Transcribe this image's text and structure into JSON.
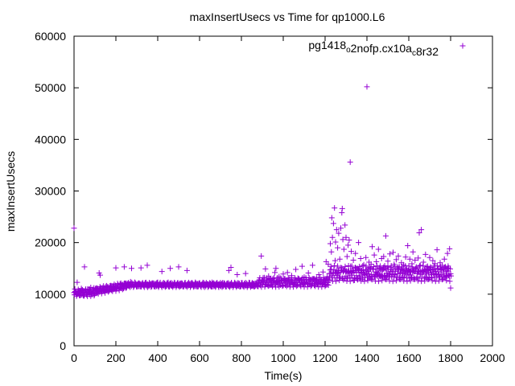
{
  "chart_data": {
    "type": "scatter",
    "title": "maxInsertUsecs vs Time for qp1000.L6",
    "xlabel": "Time(s)",
    "ylabel": "maxInsertUsecs",
    "xlim": [
      0,
      2000
    ],
    "ylim": [
      0,
      60000
    ],
    "x_ticks": [
      "0",
      "200",
      "400",
      "600",
      "800",
      "1000",
      "1200",
      "1400",
      "1600",
      "1800",
      "2000"
    ],
    "y_ticks": [
      "0",
      "10000",
      "20000",
      "30000",
      "40000",
      "50000",
      "60000"
    ],
    "grid": false,
    "legend_position": "top-right",
    "marker": "plus",
    "series": [
      {
        "name": "pg1418_o2nofp.cx10a_c8r32",
        "color": "#9400d3",
        "points": [
          [
            0,
            22800
          ],
          [
            5,
            10400
          ],
          [
            10,
            10100
          ],
          [
            15,
            12300
          ],
          [
            20,
            10500
          ],
          [
            25,
            9800
          ],
          [
            30,
            10600
          ],
          [
            35,
            11100
          ],
          [
            40,
            10200
          ],
          [
            45,
            9700
          ],
          [
            50,
            15300
          ],
          [
            55,
            10800
          ],
          [
            60,
            9900
          ],
          [
            65,
            11000
          ],
          [
            70,
            10300
          ],
          [
            75,
            10900
          ],
          [
            80,
            11300
          ],
          [
            85,
            10000
          ],
          [
            90,
            10600
          ],
          [
            95,
            11200
          ],
          [
            100,
            10800
          ],
          [
            105,
            10300
          ],
          [
            110,
            11000
          ],
          [
            115,
            10700
          ],
          [
            120,
            14100
          ],
          [
            125,
            13700
          ],
          [
            130,
            11200
          ],
          [
            140,
            10600
          ],
          [
            150,
            11500
          ],
          [
            160,
            10900
          ],
          [
            170,
            11200
          ],
          [
            180,
            11600
          ],
          [
            190,
            11300
          ],
          [
            200,
            15100
          ],
          [
            210,
            11800
          ],
          [
            220,
            12000
          ],
          [
            230,
            11700
          ],
          [
            240,
            15300
          ],
          [
            250,
            12100
          ],
          [
            260,
            11700
          ],
          [
            270,
            12400
          ],
          [
            275,
            15000
          ],
          [
            280,
            11900
          ],
          [
            290,
            12300
          ],
          [
            300,
            11800
          ],
          [
            310,
            12000
          ],
          [
            320,
            15100
          ],
          [
            330,
            11900
          ],
          [
            340,
            12200
          ],
          [
            350,
            15600
          ],
          [
            360,
            11700
          ],
          [
            370,
            12100
          ],
          [
            380,
            12000
          ],
          [
            390,
            11800
          ],
          [
            400,
            12300
          ],
          [
            410,
            11900
          ],
          [
            420,
            14400
          ],
          [
            430,
            12100
          ],
          [
            440,
            11800
          ],
          [
            450,
            12300
          ],
          [
            460,
            15000
          ],
          [
            470,
            11700
          ],
          [
            480,
            12200
          ],
          [
            490,
            11900
          ],
          [
            500,
            15300
          ],
          [
            510,
            12000
          ],
          [
            520,
            11800
          ],
          [
            530,
            12200
          ],
          [
            540,
            14600
          ],
          [
            550,
            11900
          ],
          [
            560,
            12100
          ],
          [
            570,
            11700
          ],
          [
            580,
            12300
          ],
          [
            590,
            11900
          ],
          [
            600,
            12100
          ],
          [
            610,
            11800
          ],
          [
            620,
            12200
          ],
          [
            630,
            11900
          ],
          [
            640,
            12000
          ],
          [
            650,
            11700
          ],
          [
            660,
            12300
          ],
          [
            670,
            11800
          ],
          [
            680,
            12100
          ],
          [
            690,
            11900
          ],
          [
            700,
            11600
          ],
          [
            710,
            12200
          ],
          [
            720,
            11800
          ],
          [
            730,
            12000
          ],
          [
            740,
            14600
          ],
          [
            750,
            15200
          ],
          [
            760,
            11700
          ],
          [
            770,
            12100
          ],
          [
            780,
            13800
          ],
          [
            790,
            11900
          ],
          [
            800,
            12200
          ],
          [
            810,
            11700
          ],
          [
            820,
            14000
          ],
          [
            830,
            11800
          ],
          [
            840,
            12200
          ],
          [
            850,
            11600
          ],
          [
            860,
            12000
          ],
          [
            870,
            11900
          ],
          [
            880,
            12300
          ],
          [
            890,
            11700
          ],
          [
            895,
            17400
          ],
          [
            900,
            12600
          ],
          [
            910,
            13200
          ],
          [
            915,
            14900
          ],
          [
            920,
            12400
          ],
          [
            930,
            13500
          ],
          [
            940,
            11800
          ],
          [
            950,
            13000
          ],
          [
            960,
            14200
          ],
          [
            965,
            15000
          ],
          [
            970,
            12300
          ],
          [
            980,
            13400
          ],
          [
            990,
            12700
          ],
          [
            1000,
            13900
          ],
          [
            1010,
            12500
          ],
          [
            1020,
            14200
          ],
          [
            1030,
            12900
          ],
          [
            1040,
            13600
          ],
          [
            1050,
            12200
          ],
          [
            1060,
            14800
          ],
          [
            1070,
            13100
          ],
          [
            1080,
            12600
          ],
          [
            1090,
            15400
          ],
          [
            1100,
            13300
          ],
          [
            1110,
            12400
          ],
          [
            1120,
            14100
          ],
          [
            1130,
            12800
          ],
          [
            1140,
            15600
          ],
          [
            1150,
            13000
          ],
          [
            1160,
            12300
          ],
          [
            1170,
            13800
          ],
          [
            1180,
            12600
          ],
          [
            1190,
            14300
          ],
          [
            1200,
            12900
          ],
          [
            1205,
            16300
          ],
          [
            1210,
            13400
          ],
          [
            1215,
            15800
          ],
          [
            1220,
            14000
          ],
          [
            1225,
            19800
          ],
          [
            1230,
            18200
          ],
          [
            1232,
            24800
          ],
          [
            1235,
            21000
          ],
          [
            1240,
            23700
          ],
          [
            1245,
            26700
          ],
          [
            1248,
            16500
          ],
          [
            1250,
            20100
          ],
          [
            1255,
            22500
          ],
          [
            1258,
            14000
          ],
          [
            1260,
            19000
          ],
          [
            1265,
            21800
          ],
          [
            1268,
            13400
          ],
          [
            1270,
            16800
          ],
          [
            1275,
            22800
          ],
          [
            1280,
            25800
          ],
          [
            1282,
            26600
          ],
          [
            1285,
            20600
          ],
          [
            1288,
            14500
          ],
          [
            1290,
            18700
          ],
          [
            1295,
            23400
          ],
          [
            1300,
            21000
          ],
          [
            1305,
            17300
          ],
          [
            1308,
            13200
          ],
          [
            1310,
            19500
          ],
          [
            1315,
            20500
          ],
          [
            1320,
            35600
          ],
          [
            1322,
            15400
          ],
          [
            1325,
            18300
          ],
          [
            1330,
            14100
          ],
          [
            1335,
            16600
          ],
          [
            1340,
            12700
          ],
          [
            1345,
            17900
          ],
          [
            1350,
            13600
          ],
          [
            1355,
            15000
          ],
          [
            1360,
            20000
          ],
          [
            1365,
            13200
          ],
          [
            1370,
            16900
          ],
          [
            1375,
            14600
          ],
          [
            1380,
            12900
          ],
          [
            1385,
            15700
          ],
          [
            1390,
            13800
          ],
          [
            1395,
            17100
          ],
          [
            1400,
            50200
          ],
          [
            1405,
            14400
          ],
          [
            1410,
            16200
          ],
          [
            1415,
            13500
          ],
          [
            1420,
            15800
          ],
          [
            1425,
            19200
          ],
          [
            1430,
            14900
          ],
          [
            1435,
            17600
          ],
          [
            1440,
            13700
          ],
          [
            1445,
            16300
          ],
          [
            1450,
            14200
          ],
          [
            1455,
            18700
          ],
          [
            1460,
            15100
          ],
          [
            1465,
            13400
          ],
          [
            1470,
            16900
          ],
          [
            1475,
            14700
          ],
          [
            1480,
            17300
          ],
          [
            1485,
            15500
          ],
          [
            1490,
            21300
          ],
          [
            1495,
            14100
          ],
          [
            1500,
            16400
          ],
          [
            1505,
            13900
          ],
          [
            1510,
            17800
          ],
          [
            1515,
            15200
          ],
          [
            1520,
            14500
          ],
          [
            1525,
            18100
          ],
          [
            1530,
            15800
          ],
          [
            1535,
            13800
          ],
          [
            1540,
            16700
          ],
          [
            1545,
            14900
          ],
          [
            1550,
            17400
          ],
          [
            1555,
            15300
          ],
          [
            1560,
            14200
          ],
          [
            1565,
            16100
          ],
          [
            1570,
            14600
          ],
          [
            1575,
            15700
          ],
          [
            1580,
            13900
          ],
          [
            1585,
            17200
          ],
          [
            1590,
            15000
          ],
          [
            1595,
            19400
          ],
          [
            1600,
            14800
          ],
          [
            1605,
            16800
          ],
          [
            1610,
            13700
          ],
          [
            1615,
            15900
          ],
          [
            1620,
            18200
          ],
          [
            1625,
            14400
          ],
          [
            1630,
            16600
          ],
          [
            1635,
            15100
          ],
          [
            1640,
            14000
          ],
          [
            1645,
            17000
          ],
          [
            1650,
            21900
          ],
          [
            1655,
            15600
          ],
          [
            1660,
            22500
          ],
          [
            1665,
            14300
          ],
          [
            1670,
            16200
          ],
          [
            1675,
            14800
          ],
          [
            1680,
            17700
          ],
          [
            1685,
            13900
          ],
          [
            1690,
            15400
          ],
          [
            1695,
            14600
          ],
          [
            1700,
            17100
          ],
          [
            1705,
            15200
          ],
          [
            1710,
            13800
          ],
          [
            1715,
            16500
          ],
          [
            1720,
            14900
          ],
          [
            1725,
            15900
          ],
          [
            1730,
            14400
          ],
          [
            1735,
            18600
          ],
          [
            1740,
            15000
          ],
          [
            1745,
            13700
          ],
          [
            1750,
            16100
          ],
          [
            1755,
            14700
          ],
          [
            1760,
            15600
          ],
          [
            1765,
            14100
          ],
          [
            1770,
            16800
          ],
          [
            1775,
            15300
          ],
          [
            1780,
            14400
          ],
          [
            1785,
            17900
          ],
          [
            1790,
            15100
          ],
          [
            1795,
            18800
          ],
          [
            1800,
            11200
          ]
        ]
      }
    ]
  }
}
